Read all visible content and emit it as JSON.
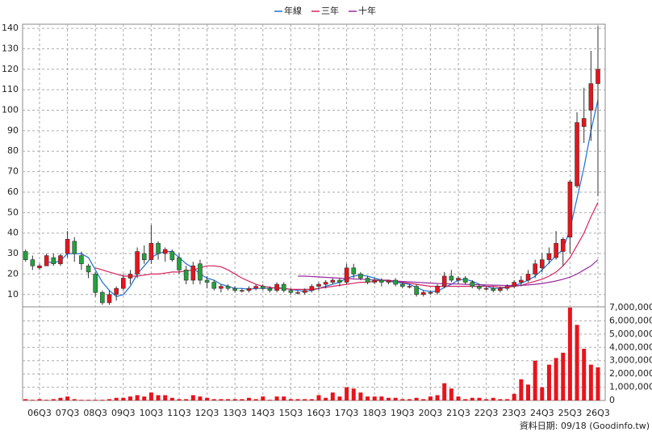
{
  "chart_data": {
    "type": "candlestick",
    "categories": [
      null,
      null,
      "06Q3",
      null,
      null,
      null,
      "07Q3",
      null,
      null,
      null,
      "08Q3",
      null,
      null,
      null,
      "09Q3",
      null,
      null,
      null,
      "10Q3",
      null,
      null,
      null,
      "11Q3",
      null,
      null,
      null,
      "12Q3",
      null,
      null,
      null,
      "13Q3",
      null,
      null,
      null,
      "14Q3",
      null,
      null,
      null,
      "15Q3",
      null,
      null,
      null,
      "16Q3",
      null,
      null,
      null,
      "17Q3",
      null,
      null,
      null,
      "18Q3",
      null,
      null,
      null,
      "19Q3",
      null,
      null,
      null,
      "20Q3",
      null,
      null,
      null,
      "21Q3",
      null,
      null,
      null,
      "22Q3",
      null,
      null,
      null,
      "23Q3",
      null,
      null,
      null,
      "24Q3",
      null,
      null,
      null,
      "25Q3",
      null,
      null,
      null,
      "26Q3"
    ],
    "open": [
      31,
      27,
      23,
      24,
      28,
      25,
      30,
      36,
      29,
      24,
      20,
      11,
      6,
      10,
      13,
      18,
      20,
      30,
      27,
      35,
      30,
      31,
      28,
      22,
      17,
      25,
      17,
      16,
      13,
      14,
      13,
      12,
      12,
      13,
      14,
      13,
      12,
      15,
      12,
      11,
      11,
      12,
      14,
      15,
      16,
      17,
      16,
      23,
      20,
      18,
      16,
      17,
      16,
      17,
      15,
      14,
      14,
      10,
      11,
      11,
      14,
      19,
      17,
      18,
      16,
      14,
      13,
      13,
      12,
      13,
      14,
      16,
      17,
      20,
      23,
      27,
      28,
      31,
      38,
      63,
      92,
      100,
      113
    ],
    "high": [
      32,
      29,
      25,
      30,
      30,
      30,
      41,
      38,
      31,
      25,
      21,
      12,
      12,
      14,
      20,
      22,
      33,
      34,
      44,
      36,
      33,
      32,
      30,
      24,
      26,
      27,
      19,
      17,
      15,
      15,
      14,
      13,
      14,
      15,
      15,
      14,
      16,
      16,
      13,
      12,
      13,
      15,
      16,
      17,
      18,
      18,
      25,
      25,
      21,
      19,
      18,
      18,
      17,
      18,
      16,
      15,
      15,
      12,
      12,
      15,
      21,
      22,
      19,
      19,
      17,
      15,
      14,
      14,
      14,
      15,
      17,
      19,
      22,
      27,
      30,
      33,
      41,
      38,
      66,
      99,
      111,
      129,
      141
    ],
    "low": [
      26,
      22,
      22,
      24,
      24,
      24,
      28,
      26,
      22,
      18,
      9,
      5,
      5,
      7,
      12,
      15,
      18,
      25,
      25,
      27,
      26,
      26,
      20,
      15,
      15,
      15,
      13,
      12,
      11,
      12,
      11,
      11,
      11,
      12,
      12,
      11,
      11,
      11,
      10,
      10,
      10,
      11,
      12,
      13,
      15,
      14,
      15,
      18,
      17,
      15,
      15,
      14,
      15,
      14,
      13,
      13,
      9,
      9,
      10,
      10,
      13,
      16,
      15,
      15,
      13,
      12,
      12,
      11,
      11,
      12,
      13,
      14,
      16,
      18,
      21,
      25,
      27,
      24,
      30,
      62,
      84,
      85,
      58
    ],
    "close": [
      27,
      24,
      24,
      29,
      25,
      29,
      37,
      30,
      25,
      21,
      11,
      6,
      10,
      13,
      18,
      20,
      31,
      27,
      35,
      30,
      32,
      27,
      22,
      17,
      24,
      17,
      16,
      13,
      14,
      13,
      12,
      12,
      13,
      14,
      13,
      12,
      15,
      12,
      11,
      11,
      12,
      14,
      15,
      16,
      17,
      16,
      23,
      20,
      18,
      16,
      17,
      16,
      17,
      15,
      14,
      14,
      10,
      11,
      11,
      14,
      19,
      17,
      18,
      16,
      14,
      13,
      13,
      12,
      13,
      14,
      16,
      17,
      20,
      25,
      27,
      30,
      35,
      37,
      65,
      94,
      96,
      113,
      120
    ],
    "up_color": "#e8141c",
    "down_color": "#22a33a",
    "volume": [
      100000,
      50000,
      100000,
      50000,
      100000,
      200000,
      300000,
      100000,
      50000,
      50000,
      50000,
      50000,
      100000,
      200000,
      200000,
      300000,
      400000,
      300000,
      600000,
      400000,
      400000,
      200000,
      100000,
      100000,
      400000,
      300000,
      200000,
      100000,
      100000,
      100000,
      100000,
      100000,
      200000,
      100000,
      300000,
      50000,
      300000,
      300000,
      100000,
      100000,
      100000,
      100000,
      400000,
      200000,
      600000,
      300000,
      1000000,
      900000,
      600000,
      300000,
      300000,
      300000,
      200000,
      200000,
      100000,
      100000,
      200000,
      100000,
      300000,
      400000,
      1300000,
      900000,
      300000,
      100000,
      200000,
      200000,
      100000,
      200000,
      100000,
      100000,
      500000,
      1600000,
      1200000,
      3000000,
      1000000,
      2700000,
      3200000,
      3600000,
      7000000,
      5700000,
      3900000,
      2700000,
      2500000
    ],
    "volume_color": "#e8141c",
    "series": [
      {
        "name": "年線",
        "color": "#1f6fd1",
        "values": [
          null,
          null,
          null,
          26,
          25.5,
          26.5,
          30,
          30,
          30,
          28,
          22,
          16,
          12,
          9,
          10,
          14,
          20,
          24,
          28,
          30,
          31,
          31,
          28,
          25,
          23,
          20,
          18,
          17,
          15,
          14,
          13,
          13,
          12.5,
          13,
          13,
          13,
          13.5,
          13,
          12.5,
          12,
          11.5,
          12,
          13,
          14,
          15,
          16,
          18,
          19,
          19.5,
          19,
          18,
          17,
          16.5,
          16,
          15.5,
          15,
          13.5,
          12,
          11.5,
          11.5,
          13.5,
          15,
          17,
          17.5,
          16.5,
          15,
          14,
          13,
          13,
          13.5,
          14.5,
          15.5,
          17,
          19,
          22,
          25.5,
          29,
          32,
          42,
          57,
          72,
          90,
          105
        ]
      },
      {
        "name": "三年",
        "color": "#d6245c",
        "values": [
          null,
          null,
          null,
          null,
          null,
          null,
          null,
          null,
          null,
          null,
          23,
          22,
          21,
          20,
          19,
          19,
          19,
          19.5,
          20,
          20,
          20.5,
          21,
          21,
          21.5,
          22,
          23,
          24,
          24,
          23.5,
          22,
          20,
          18,
          16.5,
          15,
          14,
          13.5,
          13,
          13,
          12.5,
          12.5,
          12.5,
          12.5,
          13,
          13.5,
          14,
          14.5,
          15,
          15.5,
          16,
          16,
          16.5,
          17,
          17,
          16.5,
          16,
          15.5,
          15,
          14.5,
          14,
          14,
          14,
          14,
          14,
          14,
          14,
          14,
          14,
          14,
          13.5,
          13.5,
          14,
          14.5,
          15.5,
          16.5,
          17.5,
          19,
          21,
          24,
          28,
          34,
          40,
          48,
          55
        ]
      },
      {
        "name": "十年",
        "color": "#9a2a9e",
        "values": [
          null,
          null,
          null,
          null,
          null,
          null,
          null,
          null,
          null,
          null,
          null,
          null,
          null,
          null,
          null,
          null,
          null,
          null,
          null,
          null,
          null,
          null,
          null,
          null,
          null,
          null,
          null,
          null,
          null,
          null,
          null,
          null,
          null,
          null,
          null,
          null,
          null,
          null,
          null,
          19,
          19,
          18.8,
          18.6,
          18.4,
          18.2,
          18,
          17.8,
          17.6,
          17.5,
          17.3,
          17.1,
          17,
          16.8,
          16.6,
          16.4,
          16.2,
          16,
          15.8,
          15.6,
          15.4,
          15.3,
          15.2,
          15.1,
          15,
          14.9,
          14.8,
          14.7,
          14.6,
          14.5,
          14.4,
          14.4,
          14.5,
          14.7,
          15,
          15.4,
          16,
          16.6,
          17.5,
          18.5,
          20,
          22,
          24,
          27
        ]
      }
    ],
    "ylim": [
      4,
      142
    ],
    "yticks": [
      10,
      20,
      30,
      40,
      50,
      60,
      70,
      80,
      90,
      100,
      110,
      120,
      130,
      140
    ],
    "y2lim": [
      0,
      7000000
    ],
    "y2ticks": [
      0,
      {
        "value": 1000000,
        "label": "1,000,000"
      },
      {
        "value": 2000000,
        "label": "2,000,000"
      },
      {
        "value": 3000000,
        "label": "3,000,000"
      },
      {
        "value": 4000000,
        "label": "4,000,000"
      },
      {
        "value": 5000000,
        "label": "5,000,000"
      },
      {
        "value": 6000000,
        "label": "6,000,000"
      },
      {
        "value": 7000000,
        "label": "7,000,000"
      }
    ],
    "grid": true,
    "source": "資料日期: 09/18 (Goodinfo.tw)"
  }
}
